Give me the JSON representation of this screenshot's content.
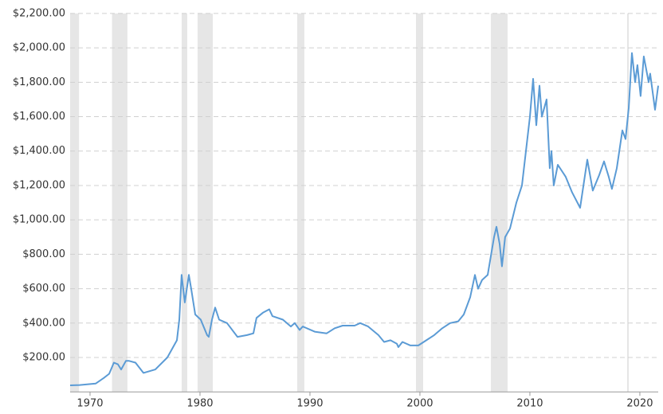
{
  "chart_data": {
    "type": "line",
    "x": [
      1968.19,
      1969.06,
      1970.51,
      1971.23,
      1971.74,
      1972.17,
      1972.54,
      1972.83,
      1973.26,
      1973.55,
      1974.13,
      1974.86,
      1975.94,
      1977.03,
      1977.9,
      1978.12,
      1978.33,
      1978.62,
      1978.99,
      1979.2,
      1979.57,
      1980.07,
      1980.65,
      1980.8,
      1981.09,
      1981.38,
      1981.74,
      1982.46,
      1983.41,
      1984.28,
      1984.86,
      1985.14,
      1985.72,
      1986.3,
      1986.59,
      1987.54,
      1988.26,
      1988.62,
      1989.06,
      1989.35,
      1990.43,
      1991.52,
      1992.25,
      1992.97,
      1994.06,
      1994.57,
      1995.29,
      1996.23,
      1996.74,
      1997.32,
      1997.9,
      1998.04,
      1998.41,
      1999.13,
      1999.86,
      2000.58,
      2001.3,
      2002.03,
      2002.75,
      2003.48,
      2003.99,
      2004.57,
      2005.0,
      2005.29,
      2005.65,
      2006.16,
      2006.74,
      2006.96,
      2007.25,
      2007.46,
      2007.75,
      2008.19,
      2008.77,
      2009.28,
      2009.64,
      2010.0,
      2010.29,
      2010.58,
      2010.87,
      2011.09,
      2011.52,
      2011.81,
      2011.96,
      2012.17,
      2012.54,
      2013.26,
      2013.84,
      2014.57,
      2015.22,
      2015.72,
      2016.3,
      2016.74,
      2017.17,
      2017.46,
      2017.9,
      2018.41,
      2018.7,
      2018.99,
      2019.28,
      2019.57,
      2019.78,
      2020.07,
      2020.36,
      2020.8,
      2020.94,
      2021.38,
      2021.67
    ],
    "series": [
      {
        "color": "#5b9bd5",
        "values": [
          38,
          40,
          48,
          80,
          105,
          170,
          160,
          130,
          180,
          180,
          170,
          110,
          130,
          200,
          300,
          420,
          680,
          520,
          680,
          600,
          450,
          420,
          330,
          320,
          420,
          490,
          420,
          400,
          320,
          330,
          340,
          430,
          460,
          480,
          440,
          420,
          380,
          400,
          360,
          380,
          350,
          340,
          370,
          385,
          385,
          400,
          380,
          330,
          290,
          300,
          280,
          260,
          290,
          270,
          270,
          300,
          330,
          370,
          400,
          410,
          450,
          550,
          680,
          600,
          650,
          680,
          900,
          960,
          860,
          730,
          900,
          950,
          1100,
          1200,
          1400,
          1600,
          1820,
          1550,
          1780,
          1600,
          1700,
          1300,
          1400,
          1200,
          1320,
          1250,
          1160,
          1070,
          1350,
          1170,
          1260,
          1340,
          1250,
          1180,
          1300,
          1520,
          1470,
          1650,
          1970,
          1800,
          1900,
          1720,
          1950,
          1800,
          1850,
          1640,
          1780
        ]
      }
    ],
    "shaded_ranges": [
      [
        1968.19,
        1969.0
      ],
      [
        1972.0,
        1973.4
      ],
      [
        1978.33,
        1978.84
      ],
      [
        1979.78,
        1981.16
      ],
      [
        1988.84,
        1989.49
      ],
      [
        1999.64,
        2000.29
      ],
      [
        2006.45,
        2007.97
      ],
      [
        2018.84,
        2018.99
      ]
    ],
    "xlim": [
      1968.19,
      2021.67
    ],
    "xticks": [
      1970,
      1980,
      1990,
      2000,
      2010,
      2020
    ],
    "ylim": [
      0,
      2200
    ],
    "yticks": [
      {
        "value": 200,
        "label": "$200.00"
      },
      {
        "value": 400,
        "label": "$400.00"
      },
      {
        "value": 600,
        "label": "$600.00"
      },
      {
        "value": 800,
        "label": "$800.00"
      },
      {
        "value": 1000,
        "label": "$1,000.00"
      },
      {
        "value": 1200,
        "label": "$1,200.00"
      },
      {
        "value": 1400,
        "label": "$1,400.00"
      },
      {
        "value": 1600,
        "label": "$1,600.00"
      },
      {
        "value": 1800,
        "label": "$1,800.00"
      },
      {
        "value": 2000,
        "label": "$2,000.00"
      },
      {
        "value": 2200,
        "label": "$2,200.00"
      }
    ],
    "grid": true
  }
}
